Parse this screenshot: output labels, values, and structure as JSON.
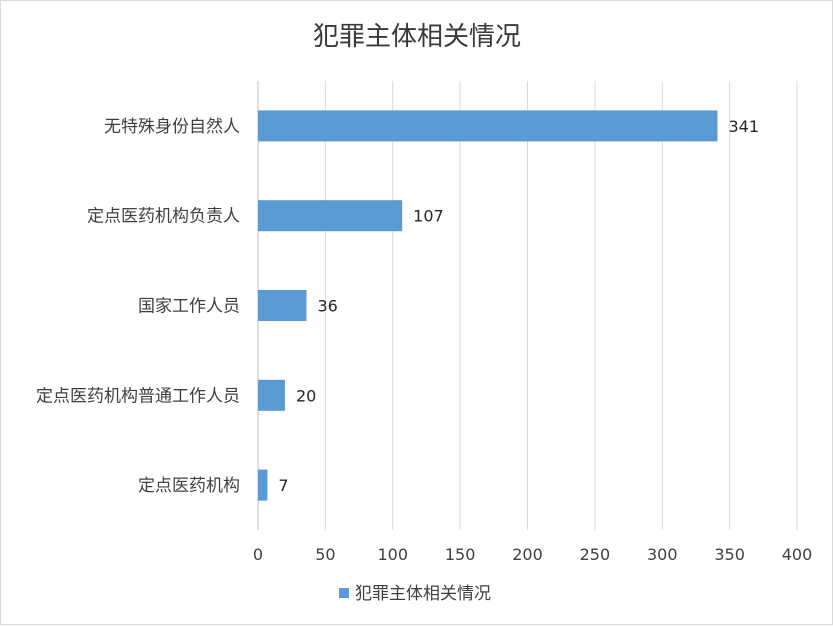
{
  "chart_data": {
    "type": "bar",
    "orientation": "horizontal",
    "title": "犯罪主体相关情况",
    "categories": [
      "无特殊身份自然人",
      "定点医药机构负责人",
      "国家工作人员",
      "定点医药机构普通工作人员",
      "定点医药机构"
    ],
    "series": [
      {
        "name": "犯罪主体相关情况",
        "values": [
          341,
          107,
          36,
          20,
          7
        ],
        "color": "#5b9bd5"
      }
    ],
    "xlim": [
      0,
      400
    ],
    "xticks": [
      0,
      50,
      100,
      150,
      200,
      250,
      300,
      350,
      400
    ],
    "grid": true,
    "legend": "bottom",
    "data_labels": true
  }
}
